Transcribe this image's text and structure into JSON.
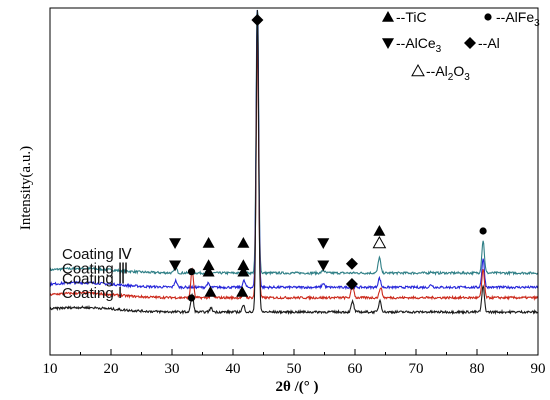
{
  "chart_data": {
    "type": "line",
    "xlabel": "2θ /(° )",
    "ylabel": "Intensity(a.u.)",
    "xlim": [
      10,
      90
    ],
    "xticks": [
      "10",
      "20",
      "30",
      "40",
      "50",
      "60",
      "70",
      "80",
      "90"
    ],
    "series": [
      {
        "name": "Coating Ⅳ",
        "color": "#2f7f86",
        "baseline": 0.3,
        "peaks": [
          [
            30.6,
            0.04
          ],
          [
            35.9,
            0.02
          ],
          [
            41.8,
            0.03
          ],
          [
            44.0,
            2.25
          ],
          [
            54.8,
            0.02
          ],
          [
            64.0,
            0.12
          ],
          [
            72.5,
            0.01
          ],
          [
            81.0,
            0.25
          ]
        ]
      },
      {
        "name": "Coating Ⅲ",
        "color": "#2525d9",
        "baseline": 0.19,
        "peaks": [
          [
            30.6,
            0.05
          ],
          [
            35.9,
            0.03
          ],
          [
            41.8,
            0.05
          ],
          [
            44.0,
            2.2
          ],
          [
            54.8,
            0.03
          ],
          [
            64.0,
            0.07
          ],
          [
            72.5,
            0.02
          ],
          [
            81.0,
            0.22
          ]
        ]
      },
      {
        "name": "Coating Ⅱ",
        "color": "#cc2a1c",
        "baseline": 0.11,
        "peaks": [
          [
            33.3,
            0.22
          ],
          [
            36.5,
            0.03
          ],
          [
            41.8,
            0.04
          ],
          [
            44.0,
            2.0
          ],
          [
            59.6,
            0.1
          ],
          [
            64.2,
            0.08
          ],
          [
            81.0,
            0.22
          ]
        ]
      },
      {
        "name": "Coating Ⅰ",
        "color": "#1a1a1a",
        "baseline": 0.0,
        "peaks": [
          [
            33.3,
            0.13
          ],
          [
            36.4,
            0.03
          ],
          [
            41.7,
            0.05
          ],
          [
            44.0,
            2.35
          ],
          [
            59.6,
            0.08
          ],
          [
            64.1,
            0.09
          ],
          [
            81.0,
            0.2
          ]
        ]
      }
    ],
    "phase_markers": [
      {
        "symbol": "diamond",
        "x": 44.0,
        "row": "top"
      },
      {
        "symbol": "triangle-down",
        "x": 30.5,
        "row": "Coating Ⅳ"
      },
      {
        "symbol": "triangle-up",
        "x": 36.0,
        "row": "Coating Ⅳ"
      },
      {
        "symbol": "triangle-up",
        "x": 41.7,
        "row": "Coating Ⅳ"
      },
      {
        "symbol": "triangle-down",
        "x": 54.8,
        "row": "Coating Ⅳ"
      },
      {
        "symbol": "triangle-up",
        "x": 64.0,
        "row": "Coating Ⅳ-high"
      },
      {
        "symbol": "triangle-open",
        "x": 64.0,
        "row": "Coating Ⅳ"
      },
      {
        "symbol": "circle",
        "x": 81.0,
        "row": "Coating Ⅳ-high"
      },
      {
        "symbol": "triangle-down",
        "x": 30.5,
        "row": "Coating Ⅲ"
      },
      {
        "symbol": "triangle-up",
        "x": 36.0,
        "row": "Coating Ⅲ"
      },
      {
        "symbol": "triangle-up",
        "x": 41.7,
        "row": "Coating Ⅲ"
      },
      {
        "symbol": "triangle-down",
        "x": 54.8,
        "row": "Coating Ⅲ"
      },
      {
        "symbol": "circle",
        "x": 33.2,
        "row": "Coating Ⅱ"
      },
      {
        "symbol": "triangle-up",
        "x": 36.0,
        "row": "Coating Ⅱ"
      },
      {
        "symbol": "triangle-up",
        "x": 41.7,
        "row": "Coating Ⅱ"
      },
      {
        "symbol": "diamond",
        "x": 59.5,
        "row": "Coating Ⅱ"
      },
      {
        "symbol": "circle",
        "x": 33.2,
        "row": "Coating Ⅰ"
      },
      {
        "symbol": "triangle-up",
        "x": 36.3,
        "row": "Coating Ⅰ"
      },
      {
        "symbol": "triangle-up",
        "x": 41.5,
        "row": "Coating Ⅰ"
      },
      {
        "symbol": "diamond",
        "x": 59.5,
        "row": "Coating Ⅰ"
      }
    ],
    "legend": [
      {
        "symbol": "triangle-up",
        "prefix": "--TiC",
        "sub": "",
        "suffix": ""
      },
      {
        "symbol": "circle",
        "prefix": "--AlFe",
        "sub": "3",
        "suffix": ""
      },
      {
        "symbol": "triangle-down",
        "prefix": "--AlCe",
        "sub": "3",
        "suffix": ""
      },
      {
        "symbol": "diamond",
        "prefix": "--Al",
        "sub": "",
        "suffix": ""
      },
      {
        "symbol": "triangle-open",
        "prefix": "--Al",
        "sub": "2",
        "suffix": "O",
        "sub2": "3"
      }
    ],
    "legend_position": "top-right",
    "grid": false
  }
}
